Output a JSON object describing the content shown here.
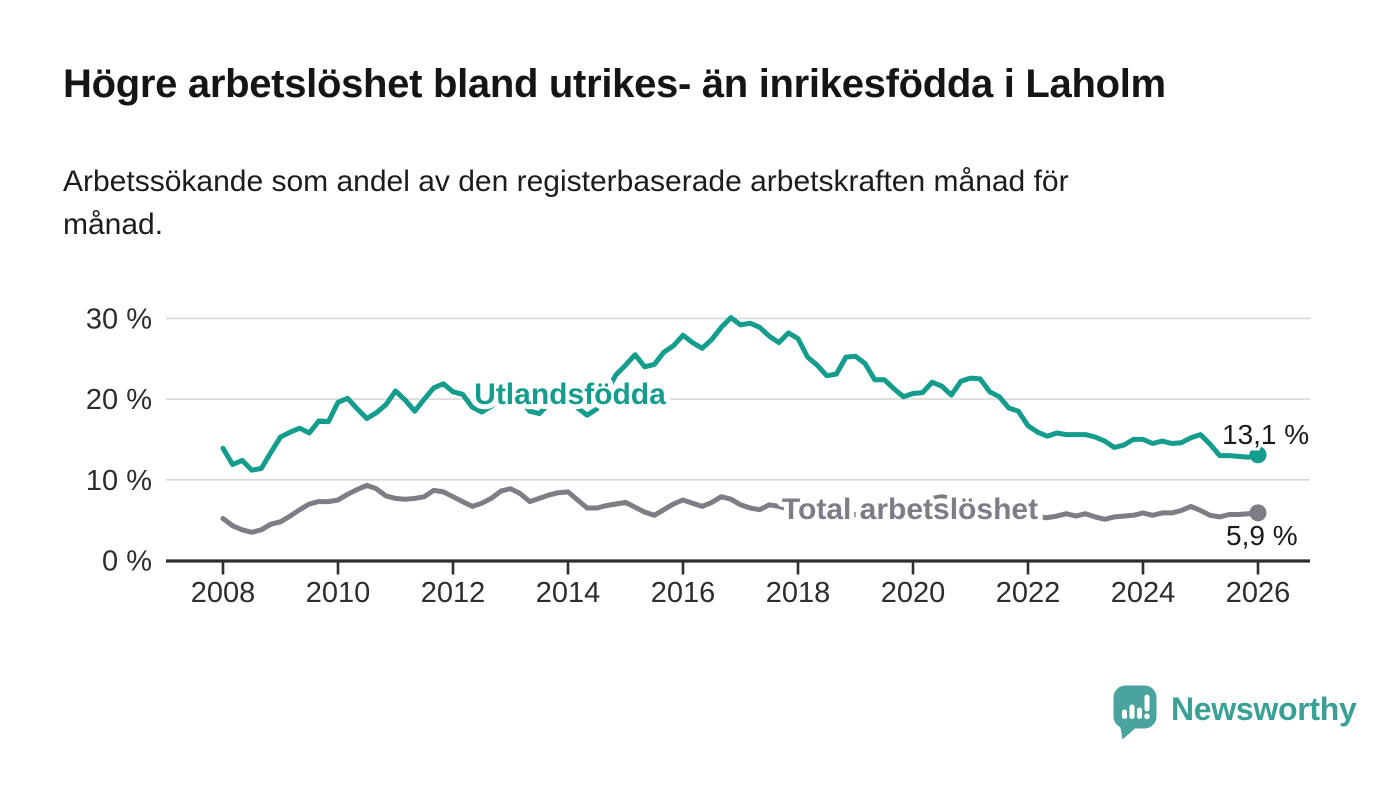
{
  "header": {
    "title": "Högre arbetslöshet bland utrikes- än inrikesfödda i Laholm",
    "subtitle_line1": "Arbetssökande som andel av den registerbaserade arbetskraften månad för",
    "subtitle_line2": "månad."
  },
  "chart_data": {
    "type": "line",
    "x_start": 2008.0,
    "x_step_years": 0.166667,
    "x_tick_labels": [
      "2008",
      "2010",
      "2012",
      "2014",
      "2016",
      "2018",
      "2020",
      "2022",
      "2024",
      "2026"
    ],
    "y_ticks": [
      0,
      10,
      20,
      30
    ],
    "y_tick_labels": [
      "0 %",
      "10 %",
      "20 %",
      "30 %"
    ],
    "ylim": [
      0,
      31
    ],
    "grid": "horizontal",
    "grid_color": "#d8d8d8",
    "axis_color": "#2f2f2f",
    "tick_text_color": "#2d2d2d",
    "series": [
      {
        "name": "Utlandsfödda",
        "color": "#149C8C",
        "end_label": "13,1 %",
        "end_value": 13.1,
        "values": [
          13.9,
          11.9,
          12.4,
          11.2,
          11.4,
          13.4,
          15.3,
          15.9,
          16.4,
          15.8,
          17.3,
          17.2,
          19.6,
          20.1,
          18.8,
          17.6,
          18.3,
          19.3,
          21.0,
          19.9,
          18.5,
          20.0,
          21.4,
          21.9,
          20.9,
          20.6,
          19.0,
          18.4,
          19.1,
          20.4,
          21.1,
          19.9,
          18.5,
          18.2,
          19.4,
          20.2,
          20.7,
          18.9,
          18.0,
          18.8,
          20.8,
          23.0,
          24.2,
          25.5,
          24.0,
          24.3,
          25.8,
          26.6,
          27.9,
          27.0,
          26.3,
          27.4,
          28.9,
          30.1,
          29.2,
          29.4,
          28.9,
          27.8,
          27.0,
          28.2,
          27.5,
          25.2,
          24.2,
          22.9,
          23.1,
          25.2,
          25.3,
          24.4,
          22.4,
          22.4,
          21.3,
          20.3,
          20.7,
          20.8,
          22.1,
          21.6,
          20.5,
          22.2,
          22.6,
          22.5,
          20.9,
          20.3,
          18.9,
          18.5,
          16.7,
          15.9,
          15.4,
          15.8,
          15.6,
          15.6,
          15.6,
          15.3,
          14.8,
          14.0,
          14.3,
          15.0,
          15.0,
          14.5,
          14.8,
          14.5,
          14.6,
          15.2,
          15.6,
          14.4,
          13.0,
          13.0,
          12.9,
          12.8,
          13.1
        ]
      },
      {
        "name": "Total arbetslöshet",
        "color": "#7E7D85",
        "end_label": "5,9 %",
        "end_value": 5.9,
        "values": [
          5.2,
          4.3,
          3.8,
          3.5,
          3.8,
          4.5,
          4.8,
          5.5,
          6.3,
          7.0,
          7.3,
          7.3,
          7.5,
          8.2,
          8.8,
          9.3,
          8.9,
          8.0,
          7.7,
          7.6,
          7.7,
          7.9,
          8.7,
          8.5,
          7.9,
          7.3,
          6.7,
          7.1,
          7.7,
          8.6,
          8.9,
          8.3,
          7.3,
          7.7,
          8.1,
          8.4,
          8.5,
          7.5,
          6.5,
          6.5,
          6.8,
          7.0,
          7.2,
          6.6,
          6.0,
          5.6,
          6.3,
          7.0,
          7.5,
          7.1,
          6.7,
          7.2,
          7.9,
          7.6,
          6.9,
          6.5,
          6.3,
          6.9,
          6.7,
          6.4,
          6.2,
          6.0,
          5.9,
          5.7,
          5.6,
          5.8,
          5.7,
          5.5,
          5.4,
          5.5,
          5.6,
          5.8,
          6.1,
          7.0,
          7.7,
          7.9,
          7.7,
          7.4,
          7.2,
          7.0,
          6.7,
          6.4,
          6.1,
          5.8,
          5.6,
          5.4,
          5.3,
          5.5,
          5.8,
          5.5,
          5.8,
          5.4,
          5.1,
          5.4,
          5.5,
          5.6,
          5.9,
          5.6,
          5.9,
          5.9,
          6.2,
          6.7,
          6.2,
          5.6,
          5.4,
          5.7,
          5.7,
          5.8,
          5.9
        ]
      }
    ]
  },
  "footer": {
    "brand": "Newsworthy",
    "brand_color": "#3AA096",
    "icon_color": "#4AA39D"
  }
}
